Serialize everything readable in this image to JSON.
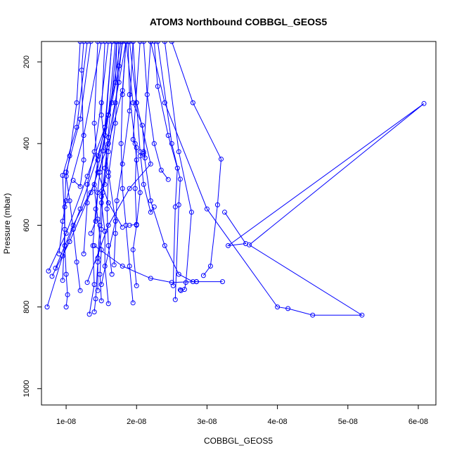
{
  "chart_data": {
    "type": "line",
    "title": "ATOM3 Northbound COBBGL_GEOS5",
    "xlabel": "COBBGL_GEOS5",
    "ylabel": "Pressure (mbar)",
    "xlim": [
      6.5e-09,
      6.25e-08
    ],
    "ylim": [
      1040,
      150
    ],
    "y_reversed": true,
    "x_ticks": [
      {
        "value": 1e-08,
        "label": "1e-08"
      },
      {
        "value": 2e-08,
        "label": "2e-08"
      },
      {
        "value": 3e-08,
        "label": "3e-08"
      },
      {
        "value": 4e-08,
        "label": "4e-08"
      },
      {
        "value": 5e-08,
        "label": "5e-08"
      },
      {
        "value": 6e-08,
        "label": "6e-08"
      }
    ],
    "y_ticks": [
      {
        "value": 200,
        "label": "200"
      },
      {
        "value": 400,
        "label": "400"
      },
      {
        "value": 600,
        "label": "600"
      },
      {
        "value": 800,
        "label": "800"
      },
      {
        "value": 1000,
        "label": "1000"
      }
    ],
    "grid": false,
    "color": "#0000ff",
    "marker": "open-circle",
    "series": [
      {
        "points": [
          [
            7.3e-09,
            800
          ],
          [
            9.5e-09,
            675
          ],
          [
            1.2e-08,
            560
          ],
          [
            1.45e-08,
            430
          ],
          [
            1.65e-08,
            300
          ],
          [
            1.75e-08,
            210
          ],
          [
            1.8e-08,
            150
          ]
        ]
      },
      {
        "points": [
          [
            7.5e-09,
            712
          ],
          [
            1e-08,
            620
          ],
          [
            1.3e-08,
            480
          ],
          [
            1.55e-08,
            360
          ],
          [
            1.7e-08,
            250
          ],
          [
            1.72e-08,
            150
          ]
        ]
      },
      {
        "points": [
          [
            8e-09,
            725
          ],
          [
            1.05e-08,
            640
          ],
          [
            1.35e-08,
            520
          ],
          [
            1.6e-08,
            400
          ],
          [
            1.8e-08,
            270
          ],
          [
            1.85e-08,
            150
          ]
        ]
      },
      {
        "points": [
          [
            8.5e-09,
            705
          ],
          [
            1.1e-08,
            600
          ],
          [
            1.4e-08,
            500
          ],
          [
            1.55e-08,
            380
          ],
          [
            1.65e-08,
            150
          ]
        ]
      },
      {
        "points": [
          [
            9e-09,
            670
          ],
          [
            9.5e-09,
            590
          ],
          [
            1e-08,
            540
          ],
          [
            1.25e-08,
            380
          ],
          [
            1.5e-08,
            150
          ]
        ]
      },
      {
        "points": [
          [
            9.5e-09,
            735
          ],
          [
            9.8e-09,
            610
          ],
          [
            9.5e-09,
            478
          ],
          [
            1.15e-08,
            360
          ],
          [
            1.3e-08,
            150
          ]
        ]
      },
      {
        "points": [
          [
            1e-08,
            800
          ],
          [
            1.02e-08,
            770
          ],
          [
            1e-08,
            720
          ],
          [
            9.8e-09,
            650
          ],
          [
            9.8e-09,
            555
          ],
          [
            1e-08,
            470
          ],
          [
            1.2e-08,
            340
          ],
          [
            1.35e-08,
            150
          ]
        ]
      },
      {
        "points": [
          [
            1.2e-08,
            760
          ],
          [
            1.15e-08,
            690
          ],
          [
            1.1e-08,
            610
          ],
          [
            1.05e-08,
            540
          ],
          [
            1e-08,
            480
          ],
          [
            1.05e-08,
            430
          ],
          [
            1.15e-08,
            300
          ],
          [
            1.2e-08,
            150
          ]
        ]
      },
      {
        "points": [
          [
            1.1e-08,
            490
          ],
          [
            1.2e-08,
            505
          ],
          [
            1.25e-08,
            440
          ],
          [
            1.22e-08,
            220
          ],
          [
            1.25e-08,
            150
          ]
        ]
      },
      {
        "points": [
          [
            1.25e-08,
            670
          ],
          [
            1.3e-08,
            545
          ],
          [
            1.3e-08,
            500
          ],
          [
            1.4e-08,
            420
          ],
          [
            1.5e-08,
            300
          ],
          [
            1.6e-08,
            150
          ]
        ]
      },
      {
        "points": [
          [
            1.33e-08,
            818
          ],
          [
            1.4e-08,
            745
          ],
          [
            1.38e-08,
            650
          ],
          [
            1.42e-08,
            560
          ],
          [
            1.48e-08,
            470
          ],
          [
            1.6e-08,
            330
          ],
          [
            1.7e-08,
            150
          ]
        ]
      },
      {
        "points": [
          [
            1.4e-08,
            812
          ],
          [
            1.42e-08,
            780
          ],
          [
            1.45e-08,
            690
          ],
          [
            1.5e-08,
            610
          ],
          [
            1.52e-08,
            520
          ],
          [
            1.6e-08,
            420
          ],
          [
            1.7e-08,
            300
          ],
          [
            1.8e-08,
            150
          ]
        ]
      },
      {
        "points": [
          [
            1.5e-08,
            785
          ],
          [
            1.48e-08,
            720
          ],
          [
            1.5e-08,
            660
          ],
          [
            1.45e-08,
            585
          ],
          [
            1.4e-08,
            510
          ],
          [
            1.45e-08,
            440
          ],
          [
            1.55e-08,
            360
          ],
          [
            1.65e-08,
            150
          ]
        ]
      },
      {
        "points": [
          [
            1.6e-08,
            792
          ],
          [
            1.55e-08,
            700
          ],
          [
            1.55e-08,
            615
          ],
          [
            1.5e-08,
            545
          ],
          [
            1.55e-08,
            460
          ],
          [
            1.6e-08,
            385
          ],
          [
            1.75e-08,
            250
          ],
          [
            1.85e-08,
            150
          ]
        ]
      },
      {
        "points": [
          [
            1.45e-08,
            760
          ],
          [
            1.45e-08,
            680
          ],
          [
            1.48e-08,
            600
          ],
          [
            1.5e-08,
            530
          ],
          [
            1.52e-08,
            418
          ],
          [
            1.6e-08,
            330
          ],
          [
            1.78e-08,
            150
          ]
        ]
      },
      {
        "points": [
          [
            1.35e-08,
            620
          ],
          [
            1.42e-08,
            590
          ],
          [
            1.45e-08,
            520
          ],
          [
            1.55e-08,
            500
          ],
          [
            1.58e-08,
            410
          ],
          [
            1.72e-08,
            150
          ]
        ]
      },
      {
        "points": [
          [
            1.65e-08,
            720
          ],
          [
            1.6e-08,
            650
          ],
          [
            1.58e-08,
            560
          ],
          [
            1.6e-08,
            480
          ],
          [
            1.7e-08,
            350
          ],
          [
            1.75e-08,
            150
          ]
        ]
      },
      {
        "points": [
          [
            1.68e-08,
            697
          ],
          [
            1.7e-08,
            620
          ],
          [
            1.72e-08,
            540
          ],
          [
            1.8e-08,
            450
          ],
          [
            1.9e-08,
            320
          ],
          [
            1.95e-08,
            150
          ]
        ]
      },
      {
        "points": [
          [
            1.95e-08,
            790
          ],
          [
            1.9e-08,
            700
          ],
          [
            1.85e-08,
            600
          ],
          [
            1.8e-08,
            510
          ],
          [
            1.78e-08,
            400
          ],
          [
            1.8e-08,
            280
          ],
          [
            1.85e-08,
            150
          ]
        ]
      },
      {
        "points": [
          [
            2e-08,
            748
          ],
          [
            1.95e-08,
            660
          ],
          [
            2e-08,
            600
          ],
          [
            2.05e-08,
            520
          ],
          [
            2e-08,
            440
          ],
          [
            1.98e-08,
            400
          ],
          [
            1.9e-08,
            280
          ],
          [
            1.88e-08,
            150
          ]
        ]
      },
      {
        "points": [
          [
            2.05e-08,
            430
          ],
          [
            2.1e-08,
            424
          ],
          [
            2.12e-08,
            435
          ],
          [
            2.08e-08,
            355
          ],
          [
            1.95e-08,
            300
          ],
          [
            1.85e-08,
            150
          ]
        ]
      },
      {
        "points": [
          [
            2.25e-08,
            555
          ],
          [
            2.2e-08,
            568
          ],
          [
            2.1e-08,
            500
          ],
          [
            2.05e-08,
            420
          ],
          [
            2e-08,
            300
          ],
          [
            1.95e-08,
            150
          ]
        ]
      },
      {
        "points": [
          [
            1.9e-08,
            600
          ],
          [
            2e-08,
            598
          ],
          [
            1.98e-08,
            510
          ],
          [
            2e-08,
            410
          ],
          [
            1.95e-08,
            390
          ],
          [
            2.05e-08,
            150
          ]
        ]
      },
      {
        "points": [
          [
            2.45e-08,
            488
          ],
          [
            2.35e-08,
            465
          ],
          [
            2.25e-08,
            400
          ],
          [
            2.15e-08,
            280
          ],
          [
            2.1e-08,
            150
          ]
        ]
      },
      {
        "points": [
          [
            2.52e-08,
            748
          ],
          [
            2.55e-08,
            555
          ],
          [
            2.58e-08,
            460
          ],
          [
            2.45e-08,
            380
          ],
          [
            2.3e-08,
            260
          ],
          [
            2.25e-08,
            150
          ]
        ]
      },
      {
        "points": [
          [
            2.55e-08,
            782
          ],
          [
            2.6e-08,
            550
          ],
          [
            2.62e-08,
            487
          ],
          [
            2.5e-08,
            400
          ],
          [
            2.3e-08,
            150
          ]
        ]
      },
      {
        "points": [
          [
            2.63e-08,
            760
          ],
          [
            2.62e-08,
            758
          ],
          [
            2.68e-08,
            757
          ],
          [
            2.7e-08,
            740
          ],
          [
            2.78e-08,
            568
          ],
          [
            2.6e-08,
            420
          ],
          [
            2.4e-08,
            150
          ]
        ]
      },
      {
        "points": [
          [
            2.85e-08,
            738
          ],
          [
            3.22e-08,
            738
          ],
          [
            2.8e-08,
            738
          ],
          [
            2.6e-08,
            720
          ],
          [
            2.4e-08,
            650
          ],
          [
            2.2e-08,
            540
          ],
          [
            2.1e-08,
            420
          ],
          [
            2.2e-08,
            150
          ]
        ]
      },
      {
        "points": [
          [
            2.95e-08,
            723
          ],
          [
            3.05e-08,
            700
          ],
          [
            3.15e-08,
            550
          ],
          [
            3.2e-08,
            438
          ],
          [
            2.8e-08,
            300
          ],
          [
            2.5e-08,
            150
          ]
        ]
      },
      {
        "points": [
          [
            3.25e-08,
            568
          ],
          [
            3.55e-08,
            645
          ],
          [
            3.3e-08,
            650
          ],
          [
            6.08e-08,
            302
          ],
          [
            3.6e-08,
            648
          ],
          [
            5.2e-08,
            820
          ],
          [
            4.5e-08,
            820
          ],
          [
            4.15e-08,
            804
          ],
          [
            4e-08,
            800
          ],
          [
            3e-08,
            560
          ],
          [
            2.4e-08,
            300
          ],
          [
            2.2e-08,
            150
          ]
        ]
      },
      {
        "points": [
          [
            1.4e-08,
            650
          ],
          [
            1.8e-08,
            700
          ],
          [
            2.2e-08,
            730
          ],
          [
            2.5e-08,
            740
          ],
          [
            2.85e-08,
            738
          ]
        ]
      },
      {
        "points": [
          [
            1.3e-08,
            740
          ],
          [
            1.6e-08,
            600
          ],
          [
            1.9e-08,
            510
          ],
          [
            2.2e-08,
            450
          ],
          [
            2e-08,
            300
          ],
          [
            1.9e-08,
            150
          ]
        ]
      },
      {
        "points": [
          [
            1.5e-08,
            745
          ],
          [
            1.7e-08,
            590
          ],
          [
            1.6e-08,
            470
          ],
          [
            1.5e-08,
            330
          ],
          [
            1.55e-08,
            150
          ]
        ]
      },
      {
        "points": [
          [
            1.8e-08,
            605
          ],
          [
            1.6e-08,
            545
          ],
          [
            1.45e-08,
            470
          ],
          [
            1.4e-08,
            350
          ],
          [
            1.45e-08,
            150
          ]
        ]
      }
    ]
  }
}
